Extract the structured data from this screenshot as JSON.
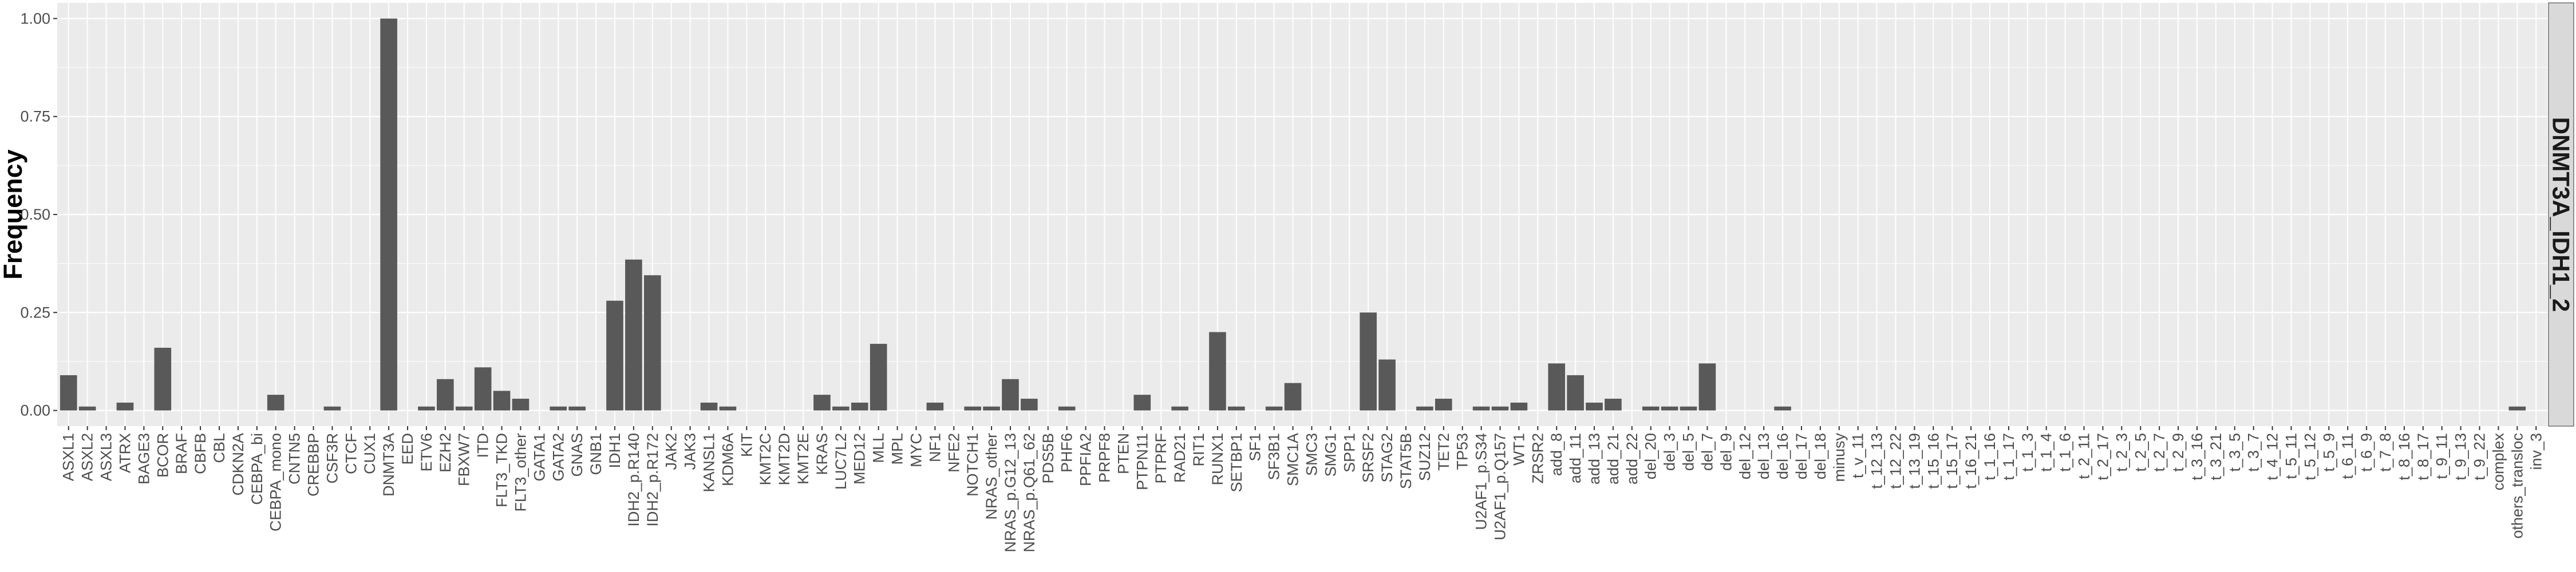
{
  "chart_data": {
    "type": "bar",
    "ylabel": "Frequency",
    "xlabel": "",
    "facet_label": "DNMT3A_IDH1_2",
    "ylim": [
      -0.04,
      1.04
    ],
    "yticks": [
      0.0,
      0.25,
      0.5,
      0.75,
      1.0
    ],
    "ytick_labels": [
      "0.00",
      "0.25",
      "0.50",
      "0.75",
      "1.00"
    ],
    "grid": true,
    "bar_color": "#595959",
    "panel_color": "#ebebeb",
    "strip_color": "#d9d9d9",
    "categories": [
      "ASXL1",
      "ASXL2",
      "ASXL3",
      "ATRX",
      "BAGE3",
      "BCOR",
      "BRAF",
      "CBFB",
      "CBL",
      "CDKN2A",
      "CEBPA_bi",
      "CEBPA_mono",
      "CNTN5",
      "CREBBP",
      "CSF3R",
      "CTCF",
      "CUX1",
      "DNMT3A",
      "EED",
      "ETV6",
      "EZH2",
      "FBXW7",
      "ITD",
      "FLT3_TKD",
      "FLT3_other",
      "GATA1",
      "GATA2",
      "GNAS",
      "GNB1",
      "IDH1",
      "IDH2_p.R140",
      "IDH2_p.R172",
      "JAK2",
      "JAK3",
      "KANSL1",
      "KDM6A",
      "KIT",
      "KMT2C",
      "KMT2D",
      "KMT2E",
      "KRAS",
      "LUC7L2",
      "MED12",
      "MLL",
      "MPL",
      "MYC",
      "NF1",
      "NFE2",
      "NOTCH1",
      "NRAS_other",
      "NRAS_p.G12_13",
      "NRAS_p.Q61_62",
      "PDS5B",
      "PHF6",
      "PPFIA2",
      "PRPF8",
      "PTEN",
      "PTPN11",
      "PTPRF",
      "RAD21",
      "RIT1",
      "RUNX1",
      "SETBP1",
      "SF1",
      "SF3B1",
      "SMC1A",
      "SMC3",
      "SMG1",
      "SPP1",
      "SRSF2",
      "STAG2",
      "STAT5B",
      "SUZ12",
      "TET2",
      "TP53",
      "U2AF1_p.S34",
      "U2AF1_p.Q157",
      "WT1",
      "ZRSR2",
      "add_8",
      "add_11",
      "add_13",
      "add_21",
      "add_22",
      "del_20",
      "del_3",
      "del_5",
      "del_7",
      "del_9",
      "del_12",
      "del_13",
      "del_16",
      "del_17",
      "del_18",
      "minusy",
      "t_v_11",
      "t_12_13",
      "t_12_22",
      "t_13_19",
      "t_15_16",
      "t_15_17",
      "t_16_21",
      "t_1_16",
      "t_1_17",
      "t_1_3",
      "t_1_4",
      "t_1_6",
      "t_2_11",
      "t_2_17",
      "t_2_3",
      "t_2_5",
      "t_2_7",
      "t_2_9",
      "t_3_16",
      "t_3_21",
      "t_3_5",
      "t_3_7",
      "t_4_12",
      "t_5_11",
      "t_5_12",
      "t_5_9",
      "t_6_11",
      "t_6_9",
      "t_7_8",
      "t_8_16",
      "t_8_17",
      "t_9_11",
      "t_9_13",
      "t_9_22",
      "complex",
      "others_transloc",
      "inv_3"
    ],
    "values": [
      0.09,
      0.01,
      0,
      0.02,
      0,
      0.16,
      0,
      0,
      0,
      0,
      0,
      0.04,
      0,
      0,
      0.01,
      0,
      0,
      1.0,
      0,
      0.01,
      0.08,
      0.01,
      0.11,
      0.05,
      0.03,
      0,
      0.01,
      0.01,
      0,
      0.28,
      0.385,
      0.345,
      0,
      0,
      0.02,
      0.01,
      0,
      0,
      0,
      0,
      0.04,
      0.01,
      0.02,
      0.17,
      0,
      0,
      0.02,
      0,
      0.01,
      0.01,
      0.08,
      0.03,
      0,
      0.01,
      0,
      0,
      0,
      0.04,
      0,
      0.01,
      0,
      0.2,
      0.01,
      0,
      0.01,
      0.07,
      0,
      0,
      0,
      0.25,
      0.13,
      0,
      0.01,
      0.03,
      0,
      0.01,
      0.01,
      0.02,
      0,
      0.12,
      0.09,
      0.02,
      0.03,
      0,
      0.01,
      0.01,
      0.01,
      0.12,
      0,
      0,
      0,
      0.01,
      0,
      0,
      0,
      0,
      0,
      0,
      0,
      0,
      0,
      0,
      0,
      0,
      0,
      0,
      0,
      0,
      0,
      0,
      0,
      0,
      0,
      0,
      0,
      0,
      0,
      0,
      0,
      0,
      0,
      0,
      0,
      0,
      0,
      0,
      0,
      0,
      0,
      0,
      0.01,
      0
    ]
  }
}
